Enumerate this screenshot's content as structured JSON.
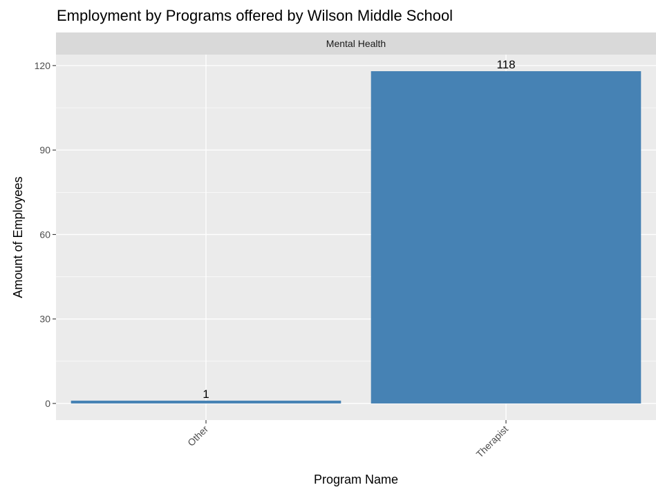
{
  "chart_data": {
    "type": "bar",
    "title": "Employment by Programs offered by Wilson Middle School",
    "facet": "Mental Health",
    "xlabel": "Program Name",
    "ylabel": "Amount of Employees",
    "categories": [
      "Other",
      "Therapist"
    ],
    "values": [
      1,
      118
    ],
    "data_labels": [
      "1",
      "118"
    ],
    "ylim": [
      -5.9,
      123.9
    ],
    "yticks": [
      0,
      30,
      60,
      90,
      120
    ],
    "ytick_labels": [
      "0",
      "30",
      "60",
      "90",
      "120"
    ],
    "grid": true,
    "legend": "none",
    "colors": {
      "bar": "#4682B4",
      "panel": "#EBEBEB",
      "strip": "#D9D9D9",
      "grid_major": "#FFFFFF"
    }
  }
}
